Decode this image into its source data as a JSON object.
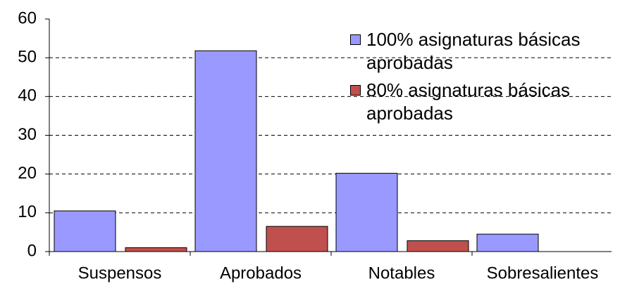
{
  "chart_data": {
    "type": "bar",
    "categories": [
      "Suspensos",
      "Aprobados",
      "Notables",
      "Sobresalientes"
    ],
    "series": [
      {
        "name": "100% asignaturas básicas aprobadas",
        "color": "#9999ff",
        "values": [
          10.5,
          51.8,
          20.2,
          4.5
        ]
      },
      {
        "name": "80% asignaturas básicas aprobadas",
        "color": "#c0504d",
        "values": [
          1.0,
          6.5,
          2.8,
          0
        ]
      }
    ],
    "ylim": [
      0,
      60
    ],
    "yticks": [
      0,
      10,
      20,
      30,
      40,
      50,
      60
    ],
    "grid": true,
    "legend": "upper right"
  }
}
